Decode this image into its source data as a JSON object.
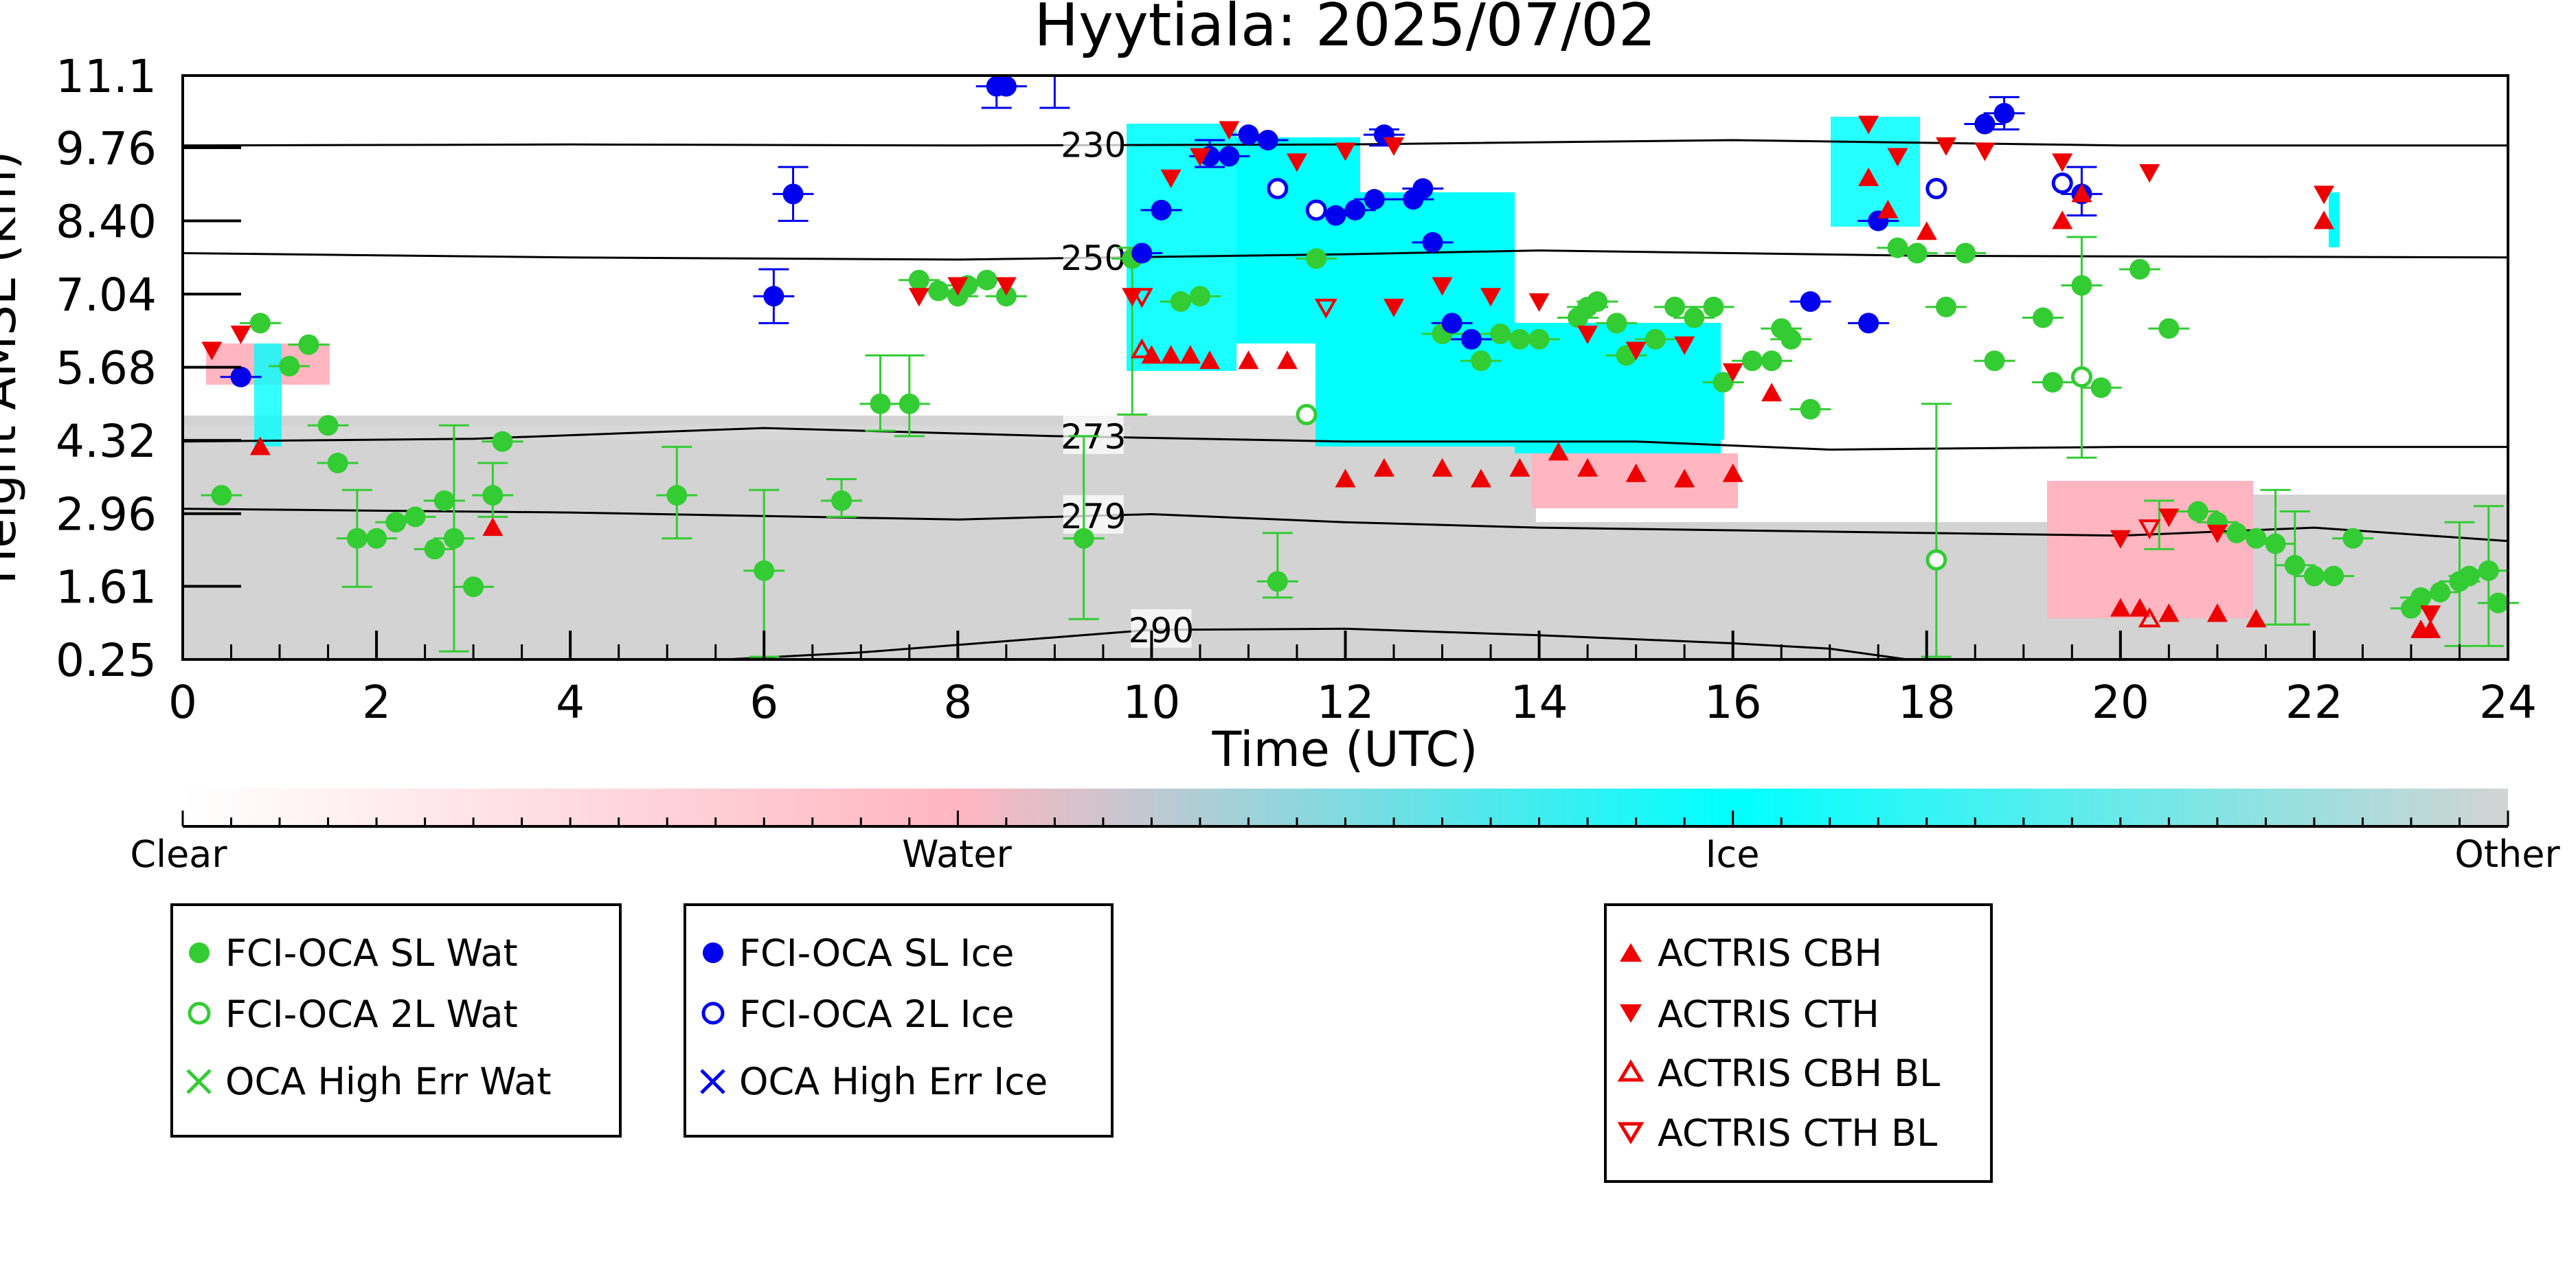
{
  "chart_data": {
    "type": "scatter",
    "title": "Hyytiala: 2025/07/02",
    "xlabel": "Time (UTC)",
    "ylabel": "Height AMSL (km)",
    "xlim": [
      0,
      24
    ],
    "ylim": [
      0.25,
      11.1
    ],
    "x_ticks": [
      "0",
      "2",
      "4",
      "6",
      "8",
      "10",
      "12",
      "14",
      "16",
      "18",
      "20",
      "22",
      "24"
    ],
    "y_ticks": [
      "0.25",
      "1.61",
      "2.96",
      "4.32",
      "5.68",
      "7.04",
      "8.40",
      "9.76",
      "11.1"
    ],
    "grid": false,
    "colors": {
      "sl_wat": "#33cc33",
      "sl_ice": "#0000ee",
      "actris": "#ee0000",
      "class_clear": "#ffffff",
      "class_water": "#ffb6c1",
      "class_ice": "#00ffff",
      "class_other": "#d3d3d3"
    },
    "colorbar": {
      "labels": [
        "Clear",
        "Water",
        "Ice",
        "Other"
      ]
    },
    "contours": [
      {
        "label": "230",
        "points": [
          [
            0,
            9.8
          ],
          [
            4,
            9.82
          ],
          [
            8,
            9.8
          ],
          [
            12,
            9.82
          ],
          [
            16,
            9.9
          ],
          [
            20,
            9.8
          ],
          [
            24,
            9.8
          ]
        ]
      },
      {
        "label": "250",
        "points": [
          [
            0,
            7.8
          ],
          [
            4,
            7.72
          ],
          [
            8,
            7.68
          ],
          [
            12,
            7.78
          ],
          [
            14,
            7.85
          ],
          [
            18,
            7.75
          ],
          [
            24,
            7.72
          ]
        ]
      },
      {
        "label": "273",
        "points": [
          [
            0,
            4.3
          ],
          [
            3,
            4.35
          ],
          [
            6,
            4.55
          ],
          [
            9,
            4.4
          ],
          [
            12,
            4.3
          ],
          [
            15,
            4.3
          ],
          [
            17,
            4.15
          ],
          [
            20,
            4.2
          ],
          [
            24,
            4.2
          ]
        ]
      },
      {
        "label": "279",
        "points": [
          [
            0,
            3.05
          ],
          [
            4,
            2.98
          ],
          [
            8,
            2.85
          ],
          [
            10,
            2.95
          ],
          [
            12,
            2.8
          ],
          [
            14,
            2.7
          ],
          [
            18,
            2.6
          ],
          [
            20,
            2.55
          ],
          [
            22,
            2.7
          ],
          [
            24,
            2.45
          ]
        ]
      },
      {
        "label": "290",
        "points": [
          [
            5.6,
            0.25
          ],
          [
            7,
            0.38
          ],
          [
            10,
            0.8
          ],
          [
            12,
            0.82
          ],
          [
            14,
            0.7
          ],
          [
            16,
            0.55
          ],
          [
            17,
            0.45
          ],
          [
            17.8,
            0.25
          ]
        ]
      }
    ],
    "series": [
      {
        "name": "FCI-OCA SL Wat",
        "marker": "filled-circle",
        "points": [
          [
            0.4,
            3.3
          ],
          [
            0.8,
            6.5
          ],
          [
            1.1,
            5.7
          ],
          [
            1.3,
            6.1
          ],
          [
            1.5,
            4.6
          ],
          [
            1.6,
            3.9
          ],
          [
            1.8,
            2.5
          ],
          [
            2.0,
            2.5
          ],
          [
            2.2,
            2.8
          ],
          [
            2.4,
            2.9
          ],
          [
            2.6,
            2.3
          ],
          [
            2.7,
            3.2
          ],
          [
            2.8,
            2.5
          ],
          [
            3.0,
            1.6
          ],
          [
            3.2,
            3.3
          ],
          [
            3.3,
            4.3
          ],
          [
            5.1,
            3.3
          ],
          [
            6.0,
            1.9
          ],
          [
            6.8,
            3.2
          ],
          [
            7.2,
            5.0
          ],
          [
            7.5,
            5.0
          ],
          [
            7.6,
            7.3
          ],
          [
            7.8,
            7.1
          ],
          [
            8.0,
            7.0
          ],
          [
            8.1,
            7.2
          ],
          [
            8.3,
            7.3
          ],
          [
            8.5,
            7.0
          ],
          [
            9.3,
            2.5
          ],
          [
            9.8,
            7.7
          ],
          [
            10.3,
            6.9
          ],
          [
            10.5,
            7.0
          ],
          [
            11.3,
            1.7
          ],
          [
            11.7,
            7.7
          ],
          [
            13.0,
            6.3
          ],
          [
            13.4,
            5.8
          ],
          [
            13.6,
            6.3
          ],
          [
            13.8,
            6.2
          ],
          [
            14.0,
            6.2
          ],
          [
            14.4,
            6.6
          ],
          [
            14.5,
            6.8
          ],
          [
            14.6,
            6.9
          ],
          [
            14.8,
            6.5
          ],
          [
            14.9,
            5.9
          ],
          [
            15.2,
            6.2
          ],
          [
            15.4,
            6.8
          ],
          [
            15.6,
            6.6
          ],
          [
            15.8,
            6.8
          ],
          [
            15.9,
            5.4
          ],
          [
            16.2,
            5.8
          ],
          [
            16.4,
            5.8
          ],
          [
            16.5,
            6.4
          ],
          [
            16.6,
            6.2
          ],
          [
            16.8,
            4.9
          ],
          [
            17.7,
            7.9
          ],
          [
            17.9,
            7.8
          ],
          [
            18.2,
            6.8
          ],
          [
            18.4,
            7.8
          ],
          [
            18.7,
            5.8
          ],
          [
            19.2,
            6.6
          ],
          [
            19.3,
            5.4
          ],
          [
            19.6,
            7.2
          ],
          [
            19.8,
            5.3
          ],
          [
            20.2,
            7.5
          ],
          [
            20.5,
            6.4
          ],
          [
            20.8,
            3.0
          ],
          [
            21.0,
            2.8
          ],
          [
            21.2,
            2.6
          ],
          [
            21.4,
            2.5
          ],
          [
            21.6,
            2.4
          ],
          [
            21.8,
            2.0
          ],
          [
            22.0,
            1.8
          ],
          [
            22.2,
            1.8
          ],
          [
            22.4,
            2.5
          ],
          [
            23.0,
            1.2
          ],
          [
            23.1,
            1.4
          ],
          [
            23.3,
            1.5
          ],
          [
            23.5,
            1.7
          ],
          [
            23.6,
            1.8
          ],
          [
            23.8,
            1.9
          ],
          [
            23.9,
            1.3
          ]
        ],
        "error_bars": [
          [
            1.8,
            1.6,
            3.4
          ],
          [
            2.8,
            0.4,
            4.6
          ],
          [
            3.2,
            2.9,
            3.9
          ],
          [
            5.1,
            2.5,
            4.2
          ],
          [
            6.0,
            0.3,
            3.4
          ],
          [
            6.8,
            2.9,
            3.6
          ],
          [
            7.2,
            4.5,
            5.9
          ],
          [
            7.5,
            4.4,
            5.9
          ],
          [
            9.3,
            1.0,
            4.4
          ],
          [
            9.8,
            4.8,
            7.9
          ],
          [
            11.3,
            1.4,
            2.6
          ],
          [
            18.1,
            0.3,
            5.0
          ],
          [
            19.6,
            4.0,
            8.1
          ],
          [
            20.4,
            2.3,
            3.2
          ],
          [
            21.6,
            0.9,
            3.4
          ],
          [
            21.8,
            0.9,
            3.0
          ],
          [
            23.5,
            0.5,
            2.8
          ],
          [
            23.8,
            0.5,
            3.1
          ]
        ]
      },
      {
        "name": "FCI-OCA 2L Wat",
        "marker": "open-circle",
        "points": [
          [
            11.6,
            4.8
          ],
          [
            18.1,
            2.1
          ],
          [
            19.6,
            5.5
          ]
        ]
      },
      {
        "name": "OCA High Err Wat",
        "marker": "x",
        "points": []
      },
      {
        "name": "FCI-OCA SL Ice",
        "marker": "filled-circle",
        "points": [
          [
            0.6,
            5.5
          ],
          [
            6.1,
            7.0
          ],
          [
            6.3,
            8.9
          ],
          [
            8.4,
            10.9
          ],
          [
            8.5,
            10.9
          ],
          [
            9.9,
            7.8
          ],
          [
            10.1,
            8.6
          ],
          [
            10.6,
            9.6
          ],
          [
            10.8,
            9.6
          ],
          [
            11.0,
            10.0
          ],
          [
            11.2,
            9.9
          ],
          [
            11.9,
            8.5
          ],
          [
            12.1,
            8.6
          ],
          [
            12.3,
            8.8
          ],
          [
            12.4,
            10.0
          ],
          [
            12.7,
            8.8
          ],
          [
            12.8,
            9.0
          ],
          [
            12.9,
            8.0
          ],
          [
            13.1,
            6.5
          ],
          [
            13.3,
            6.2
          ],
          [
            16.8,
            6.9
          ],
          [
            17.4,
            6.5
          ],
          [
            17.5,
            8.4
          ],
          [
            18.6,
            10.2
          ],
          [
            18.8,
            10.4
          ],
          [
            19.6,
            8.9
          ]
        ],
        "error_bars": [
          [
            6.1,
            6.5,
            7.5
          ],
          [
            6.3,
            8.4,
            9.4
          ],
          [
            8.4,
            10.5,
            11.1
          ],
          [
            9.0,
            10.5,
            11.1
          ],
          [
            10.6,
            9.4,
            9.9
          ],
          [
            12.4,
            9.8,
            10.1
          ],
          [
            18.8,
            10.1,
            10.7
          ],
          [
            19.6,
            8.5,
            9.4
          ]
        ]
      },
      {
        "name": "FCI-OCA 2L Ice",
        "marker": "open-circle",
        "points": [
          [
            11.3,
            9.0
          ],
          [
            11.7,
            8.6
          ],
          [
            18.1,
            9.0
          ],
          [
            19.4,
            9.1
          ]
        ]
      },
      {
        "name": "OCA High Err Ice",
        "marker": "x",
        "points": []
      },
      {
        "name": "ACTRIS CBH",
        "marker": "triangle-up",
        "points": [
          [
            0.8,
            4.2
          ],
          [
            3.2,
            2.7
          ],
          [
            10.0,
            5.9
          ],
          [
            10.2,
            5.9
          ],
          [
            10.4,
            5.9
          ],
          [
            10.6,
            5.8
          ],
          [
            11.0,
            5.8
          ],
          [
            11.4,
            5.8
          ],
          [
            12.0,
            3.6
          ],
          [
            12.4,
            3.8
          ],
          [
            13.0,
            3.8
          ],
          [
            13.4,
            3.6
          ],
          [
            13.8,
            3.8
          ],
          [
            14.2,
            4.1
          ],
          [
            14.5,
            3.8
          ],
          [
            15.0,
            3.7
          ],
          [
            15.5,
            3.6
          ],
          [
            16.0,
            3.7
          ],
          [
            16.4,
            5.2
          ],
          [
            17.4,
            9.2
          ],
          [
            17.6,
            8.6
          ],
          [
            18.0,
            8.2
          ],
          [
            19.4,
            8.4
          ],
          [
            19.6,
            8.9
          ],
          [
            20.0,
            1.2
          ],
          [
            20.2,
            1.2
          ],
          [
            20.5,
            1.1
          ],
          [
            21.0,
            1.1
          ],
          [
            21.4,
            1.0
          ],
          [
            22.1,
            8.4
          ],
          [
            23.1,
            0.8
          ],
          [
            23.2,
            0.8
          ]
        ]
      },
      {
        "name": "ACTRIS CTH",
        "marker": "triangle-down",
        "points": [
          [
            0.3,
            6.0
          ],
          [
            0.6,
            6.3
          ],
          [
            7.6,
            7.0
          ],
          [
            8.0,
            7.2
          ],
          [
            8.5,
            7.2
          ],
          [
            9.8,
            7.0
          ],
          [
            10.2,
            9.2
          ],
          [
            10.5,
            9.6
          ],
          [
            10.8,
            10.1
          ],
          [
            11.5,
            9.5
          ],
          [
            12.0,
            9.7
          ],
          [
            12.5,
            9.8
          ],
          [
            12.5,
            6.8
          ],
          [
            13.0,
            7.2
          ],
          [
            13.5,
            7.0
          ],
          [
            14.0,
            6.9
          ],
          [
            14.5,
            6.3
          ],
          [
            15.0,
            6.0
          ],
          [
            15.5,
            6.1
          ],
          [
            16.0,
            5.6
          ],
          [
            17.4,
            10.2
          ],
          [
            17.7,
            9.6
          ],
          [
            18.2,
            9.8
          ],
          [
            18.6,
            9.7
          ],
          [
            19.4,
            9.5
          ],
          [
            20.3,
            9.3
          ],
          [
            22.1,
            8.9
          ],
          [
            20.0,
            2.5
          ],
          [
            20.5,
            2.9
          ],
          [
            21.0,
            2.6
          ],
          [
            23.2,
            1.1
          ]
        ]
      },
      {
        "name": "ACTRIS CBH BL",
        "marker": "triangle-up-open",
        "points": [
          [
            9.9,
            6.0
          ],
          [
            20.3,
            1.0
          ]
        ]
      },
      {
        "name": "ACTRIS CTH BL",
        "marker": "triangle-down-open",
        "points": [
          [
            9.9,
            7.0
          ],
          [
            11.8,
            6.8
          ],
          [
            20.3,
            2.7
          ]
        ]
      }
    ]
  }
}
